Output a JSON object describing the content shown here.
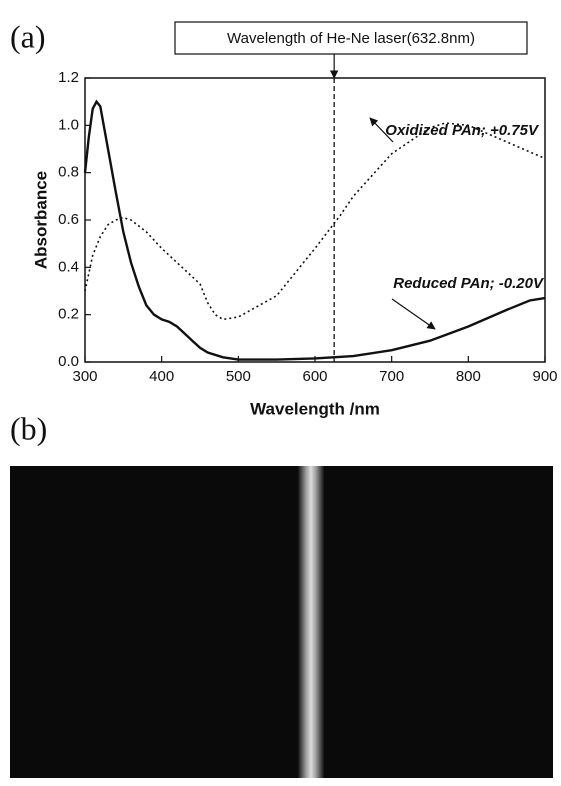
{
  "panel_a": "(a)",
  "panel_b": "(b)",
  "chart_data": {
    "type": "line",
    "xlabel": "Wavelength /nm",
    "ylabel": "Absorbance",
    "xlim": [
      300,
      900
    ],
    "ylim": [
      0,
      1.2
    ],
    "xticks": [
      300,
      400,
      500,
      600,
      700,
      800,
      900
    ],
    "yticks": [
      {
        "value": 0,
        "label": "0.0"
      },
      0.2,
      0.4,
      0.6,
      0.8,
      {
        "value": 1,
        "label": "1.0"
      },
      1.2
    ],
    "reference_line": {
      "x": 625,
      "label": "Wavelength of He-Ne laser(632.8nm)"
    },
    "series": [
      {
        "name": "Oxidized PAn; +0.75V",
        "color": "#111111",
        "dashed": true,
        "x": [
          300,
          310,
          320,
          330,
          340,
          350,
          360,
          380,
          400,
          420,
          440,
          450,
          460,
          470,
          480,
          500,
          550,
          600,
          633,
          650,
          700,
          750,
          770,
          800,
          850,
          900
        ],
        "values": [
          0.3,
          0.45,
          0.53,
          0.58,
          0.6,
          0.61,
          0.6,
          0.55,
          0.48,
          0.42,
          0.36,
          0.33,
          0.25,
          0.2,
          0.18,
          0.19,
          0.28,
          0.48,
          0.62,
          0.7,
          0.88,
          0.99,
          1.01,
          1.0,
          0.93,
          0.86
        ]
      },
      {
        "name": "Reduced PAn; -0.20V",
        "color": "#111111",
        "dashed": false,
        "x": [
          300,
          305,
          310,
          315,
          320,
          330,
          340,
          350,
          360,
          370,
          380,
          390,
          400,
          410,
          420,
          430,
          440,
          450,
          460,
          480,
          500,
          550,
          600,
          650,
          700,
          750,
          800,
          850,
          880,
          900
        ],
        "values": [
          0.8,
          0.95,
          1.07,
          1.1,
          1.08,
          0.9,
          0.72,
          0.55,
          0.42,
          0.32,
          0.24,
          0.2,
          0.18,
          0.17,
          0.15,
          0.12,
          0.09,
          0.06,
          0.04,
          0.02,
          0.01,
          0.01,
          0.015,
          0.025,
          0.05,
          0.09,
          0.15,
          0.22,
          0.26,
          0.27
        ]
      }
    ]
  }
}
